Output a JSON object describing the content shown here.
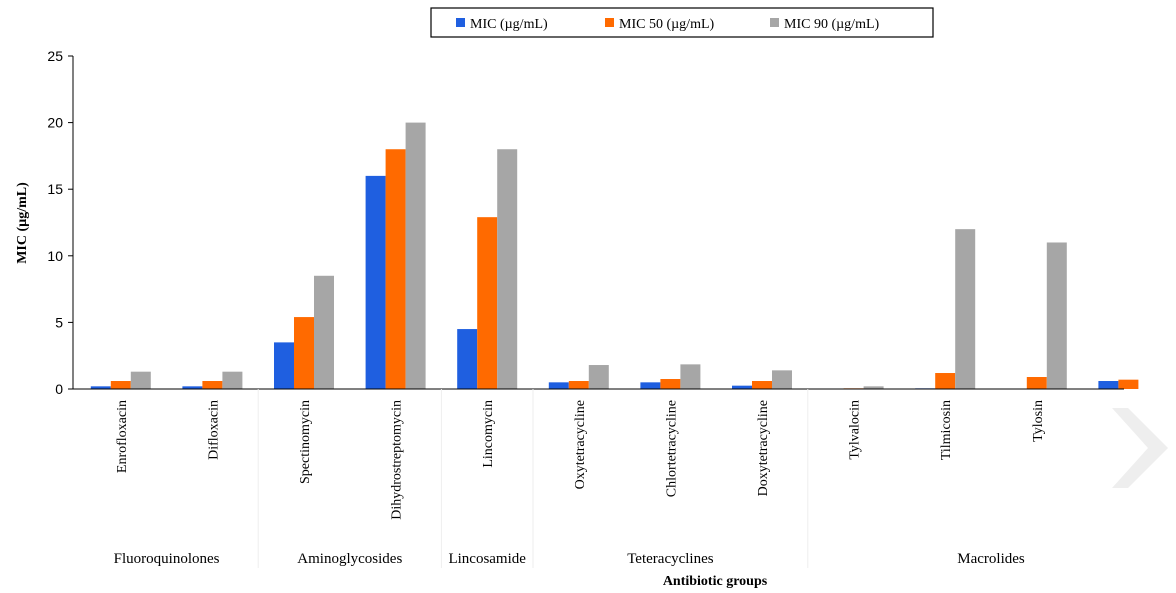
{
  "chart_data": {
    "type": "bar",
    "title": "",
    "xlabel": "Antibiotic groups",
    "ylabel": "MIC (µg/mL)",
    "ylim": [
      0,
      25
    ],
    "yticks": [
      0,
      5,
      10,
      15,
      20,
      25
    ],
    "grid": false,
    "legend_position": "top",
    "categories": [
      "Enrofloxacin",
      "Difloxacin",
      "Spectinomycin",
      "Dihydrostreptomycin",
      "Lincomycin",
      "Oxytetracycline",
      "Chlortetracycline",
      "Doxytetracycline",
      "Tylvalocin",
      "Tilmicosin",
      "Tylosin",
      ""
    ],
    "groups": [
      {
        "name": "Fluoroquinolones",
        "categories": [
          "Enrofloxacin",
          "Difloxacin"
        ]
      },
      {
        "name": "Aminoglycosides",
        "categories": [
          "Spectinomycin",
          "Dihydrostreptomycin"
        ]
      },
      {
        "name": "Lincosamide",
        "categories": [
          "Lincomycin"
        ]
      },
      {
        "name": "Teteracyclines",
        "categories": [
          "Oxytetracycline",
          "Chlortetracycline",
          "Doxytetracycline"
        ]
      },
      {
        "name": "Macrolides",
        "categories": [
          "Tylvalocin",
          "Tilmicosin",
          "Tylosin",
          ""
        ]
      }
    ],
    "series": [
      {
        "name": "MIC (µg/mL)",
        "color": "#1F5FE0",
        "values": [
          0.2,
          0.2,
          3.5,
          16,
          4.5,
          0.5,
          0.5,
          0.25,
          0,
          0.05,
          0,
          0.6
        ]
      },
      {
        "name": "MIC 50 (µg/mL)",
        "color": "#FF6A00",
        "values": [
          0.6,
          0.6,
          5.4,
          18,
          12.9,
          0.6,
          0.75,
          0.6,
          0.05,
          1.2,
          0.9,
          0.7
        ]
      },
      {
        "name": "MIC 90 (µg/mL)",
        "color": "#A6A6A6",
        "values": [
          1.3,
          1.3,
          8.5,
          20,
          18,
          1.8,
          1.85,
          1.4,
          0.2,
          12,
          11,
          0
        ]
      }
    ]
  }
}
